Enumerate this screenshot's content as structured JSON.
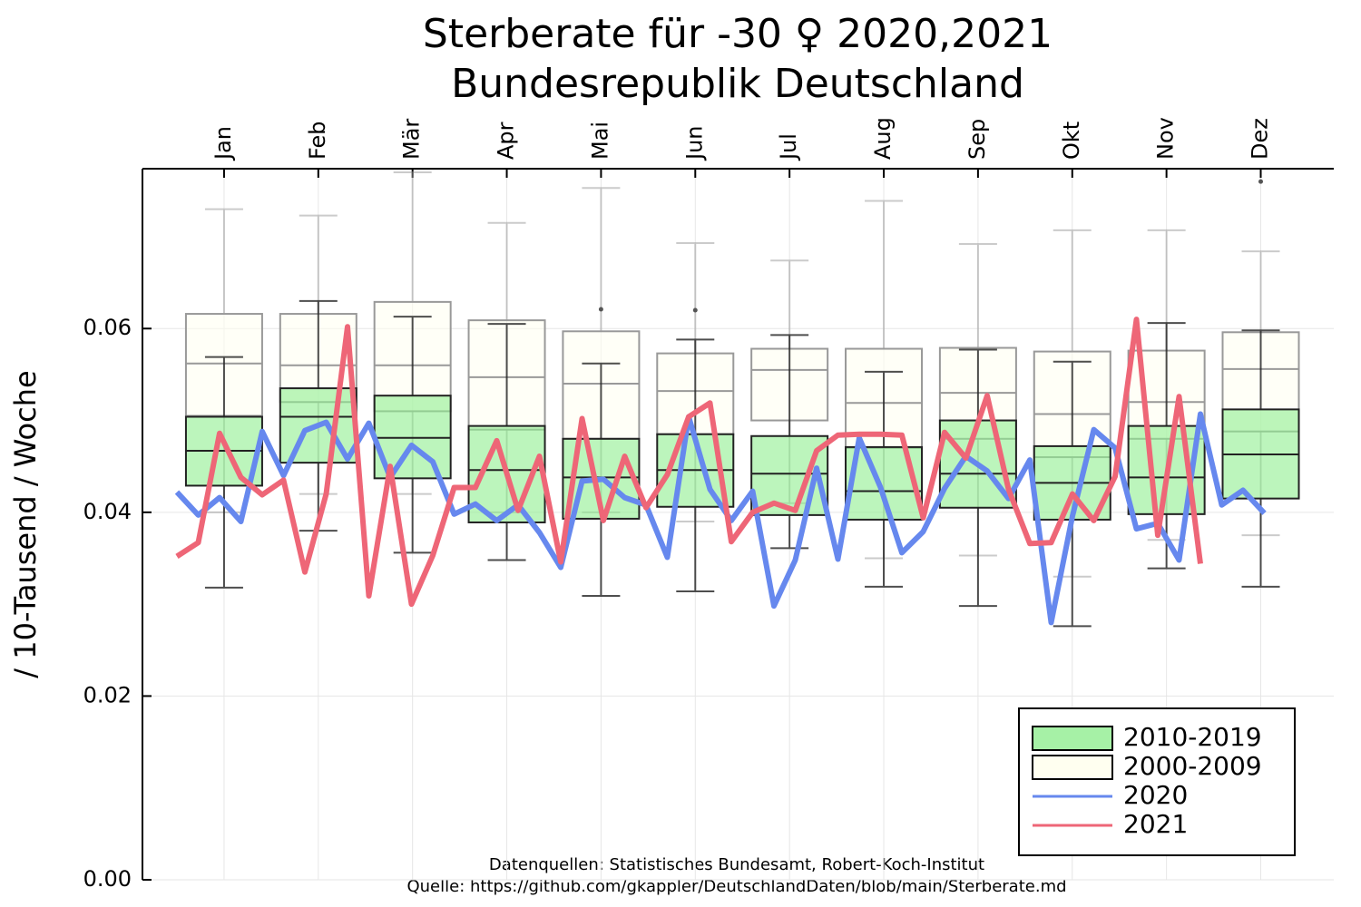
{
  "chart_data": {
    "type": "box",
    "title": "Sterberate für -30  ♀ 2020,2021",
    "subtitle": "Bundesrepublik Deutschland",
    "ylabel": "/ 10-Tausend / Woche",
    "notes": [
      "Datenquellen: Statistisches Bundesamt, Robert-Koch-Institut",
      "Quelle: https://github.com/gkappler/DeutschlandDaten/blob/main/Sterberate.md"
    ],
    "categories": [
      "Jan",
      "Feb",
      "Mär",
      "Apr",
      "Mai",
      "Jun",
      "Jul",
      "Aug",
      "Sep",
      "Okt",
      "Nov",
      "Dez"
    ],
    "ylim": [
      0,
      0.0774
    ],
    "yticks": [
      {
        "value": 0,
        "label": "0.00"
      },
      0.02,
      0.04,
      0.06
    ],
    "grid": true,
    "legend": "lower right",
    "boxes": [
      {
        "name": "2000-2009",
        "color": "#fffff0",
        "whislo": [
          0.04,
          0.042,
          0.042,
          0.04,
          0.04,
          0.039,
          0.041,
          0.035,
          0.0353,
          0.033,
          0.037,
          0.0375
        ],
        "q1": [
          0.0505,
          0.052,
          0.051,
          0.049,
          0.048,
          0.0485,
          0.05,
          0.047,
          0.048,
          0.046,
          0.048,
          0.0488
        ],
        "med": [
          0.0562,
          0.056,
          0.056,
          0.0547,
          0.054,
          0.0532,
          0.0555,
          0.0519,
          0.053,
          0.0507,
          0.052,
          0.0556
        ],
        "q3": [
          0.0616,
          0.0616,
          0.0629,
          0.0609,
          0.0597,
          0.0573,
          0.0578,
          0.0578,
          0.0579,
          0.0575,
          0.0576,
          0.0596
        ],
        "whishi": [
          0.073,
          0.0723,
          0.077,
          0.0715,
          0.0753,
          0.0693,
          0.0674,
          0.0739,
          0.0692,
          0.0707,
          0.0707,
          0.0684
        ],
        "fliers": [
          [],
          [],
          [],
          [],
          [],
          [],
          [],
          [],
          [],
          [],
          [],
          [
            0.076
          ]
        ]
      },
      {
        "name": "2010-2019",
        "color": "#90ee90",
        "whislo": [
          0.0318,
          0.038,
          0.0356,
          0.0348,
          0.0309,
          0.0314,
          0.0361,
          0.0319,
          0.0298,
          0.0276,
          0.0339,
          0.0319
        ],
        "q1": [
          0.0429,
          0.0454,
          0.0437,
          0.0389,
          0.0393,
          0.0406,
          0.0397,
          0.0392,
          0.0405,
          0.0392,
          0.0398,
          0.0415
        ],
        "med": [
          0.0467,
          0.0504,
          0.0481,
          0.0446,
          0.0438,
          0.0446,
          0.0442,
          0.0423,
          0.0442,
          0.0432,
          0.0438,
          0.0463
        ],
        "q3": [
          0.0504,
          0.0535,
          0.0527,
          0.0494,
          0.048,
          0.0485,
          0.0483,
          0.0471,
          0.05,
          0.0472,
          0.0494,
          0.0512
        ],
        "whishi": [
          0.0569,
          0.063,
          0.0613,
          0.0605,
          0.0562,
          0.0588,
          0.0593,
          0.0553,
          0.0577,
          0.0564,
          0.0606,
          0.0598
        ],
        "fliers": [
          [],
          [],
          [],
          [],
          [
            0.0621
          ],
          [
            0.062
          ],
          [],
          [],
          [],
          [],
          [],
          []
        ]
      }
    ],
    "series": [
      {
        "name": "2020",
        "color": "#6688ee",
        "values": [
          0.0422,
          0.0397,
          0.0416,
          0.039,
          0.0488,
          0.044,
          0.0489,
          0.0498,
          0.0458,
          0.0497,
          0.0438,
          0.0473,
          0.0455,
          0.0398,
          0.0409,
          0.0391,
          0.0408,
          0.0378,
          0.034,
          0.0434,
          0.0436,
          0.0416,
          0.0408,
          0.0351,
          0.0504,
          0.0425,
          0.0391,
          0.0423,
          0.0298,
          0.0348,
          0.0448,
          0.0349,
          0.0481,
          0.0427,
          0.0356,
          0.0379,
          0.0426,
          0.0461,
          0.0445,
          0.0415,
          0.0457,
          0.028,
          0.0396,
          0.049,
          0.047,
          0.0382,
          0.0388,
          0.0348,
          0.0507,
          0.0408,
          0.0424,
          0.0399
        ]
      },
      {
        "name": "2021",
        "color": "#ee6677",
        "values": [
          0.0352,
          0.0367,
          0.0486,
          0.0438,
          0.0419,
          0.0435,
          0.0335,
          0.042,
          0.0602,
          0.0309,
          0.045,
          0.03,
          0.0353,
          0.0427,
          0.0427,
          0.0478,
          0.0402,
          0.0461,
          0.0346,
          0.0502,
          0.0391,
          0.0461,
          0.0405,
          0.0441,
          0.0504,
          0.0519,
          0.0368,
          0.04,
          0.041,
          0.0402,
          0.0467,
          0.0484,
          0.0485,
          0.0485,
          0.0484,
          0.0394,
          0.0487,
          0.0459,
          0.0527,
          0.0425,
          0.0366,
          0.0367,
          0.042,
          0.0391,
          0.0439,
          0.061,
          0.0375,
          0.0526,
          0.0344
        ]
      }
    ]
  }
}
